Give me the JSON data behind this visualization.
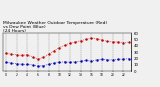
{
  "title": "Milwaukee Weather Outdoor Temperature (Red)\nvs Dew Point (Blue)\n(24 Hours)",
  "title_fontsize": 3.2,
  "background_color": "#f0f0f0",
  "plot_bg_color": "#f0f0f0",
  "grid_color": "#888888",
  "temp_color": "#cc0000",
  "dew_color": "#0000cc",
  "temp_values": [
    28,
    27,
    26,
    25,
    26,
    22,
    19,
    22,
    27,
    32,
    37,
    41,
    44,
    46,
    48,
    50,
    52,
    51,
    49,
    47,
    46,
    46,
    45,
    46
  ],
  "dew_values": [
    14,
    13,
    12,
    11,
    11,
    10,
    8,
    9,
    11,
    13,
    14,
    15,
    14,
    15,
    16,
    17,
    16,
    18,
    19,
    18,
    18,
    19,
    19,
    20
  ],
  "ylim": [
    0,
    60
  ],
  "yticks": [
    0,
    10,
    20,
    30,
    40,
    50,
    60
  ],
  "ytick_labels": [
    "0",
    "10",
    "20",
    "30",
    "40",
    "50",
    "60"
  ],
  "num_hours": 24,
  "xtick_interval": 2,
  "marker_size": 1.5,
  "line_width": 0.5,
  "ytick_fontsize": 2.8,
  "xtick_fontsize": 2.2
}
